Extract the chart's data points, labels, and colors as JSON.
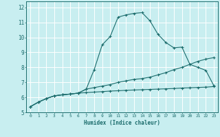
{
  "bg_color": "#c8eef0",
  "line_color": "#1a6b6b",
  "grid_color": "#ffffff",
  "xlabel": "Humidex (Indice chaleur)",
  "xlim": [
    -0.5,
    23.5
  ],
  "ylim": [
    5,
    12.4
  ],
  "yticks": [
    5,
    6,
    7,
    8,
    9,
    10,
    11,
    12
  ],
  "xticks": [
    0,
    1,
    2,
    3,
    4,
    5,
    6,
    7,
    8,
    9,
    10,
    11,
    12,
    13,
    14,
    15,
    16,
    17,
    18,
    19,
    20,
    21,
    22,
    23
  ],
  "lines": [
    {
      "x": [
        0,
        1,
        2,
        3,
        4,
        5,
        6,
        7,
        8,
        9,
        10,
        11,
        12,
        13,
        14,
        15,
        16,
        17,
        18,
        19,
        20,
        21,
        22,
        23
      ],
      "y": [
        5.38,
        5.68,
        5.92,
        6.1,
        6.17,
        6.22,
        6.28,
        6.32,
        6.35,
        6.38,
        6.42,
        6.44,
        6.47,
        6.49,
        6.51,
        6.53,
        6.55,
        6.57,
        6.59,
        6.62,
        6.64,
        6.66,
        6.68,
        6.72
      ]
    },
    {
      "x": [
        0,
        1,
        2,
        3,
        4,
        5,
        6,
        7,
        8,
        9,
        10,
        11,
        12,
        13,
        14,
        15,
        16,
        17,
        18,
        19,
        20,
        21,
        22,
        23
      ],
      "y": [
        5.38,
        5.68,
        5.92,
        6.1,
        6.17,
        6.22,
        6.28,
        6.55,
        6.65,
        6.75,
        6.85,
        7.0,
        7.1,
        7.2,
        7.25,
        7.35,
        7.5,
        7.65,
        7.85,
        8.0,
        8.2,
        8.4,
        8.55,
        8.65
      ]
    },
    {
      "x": [
        0,
        1,
        2,
        3,
        4,
        5,
        6,
        7,
        8,
        9,
        10,
        11,
        12,
        13,
        14,
        15,
        16,
        17,
        18,
        19,
        20,
        21,
        22,
        23
      ],
      "y": [
        5.38,
        5.68,
        5.92,
        6.1,
        6.17,
        6.22,
        6.28,
        6.55,
        7.85,
        9.5,
        10.05,
        11.35,
        11.5,
        11.6,
        11.65,
        11.1,
        10.2,
        9.65,
        9.3,
        9.35,
        8.2,
        8.0,
        7.8,
        6.78
      ]
    }
  ]
}
